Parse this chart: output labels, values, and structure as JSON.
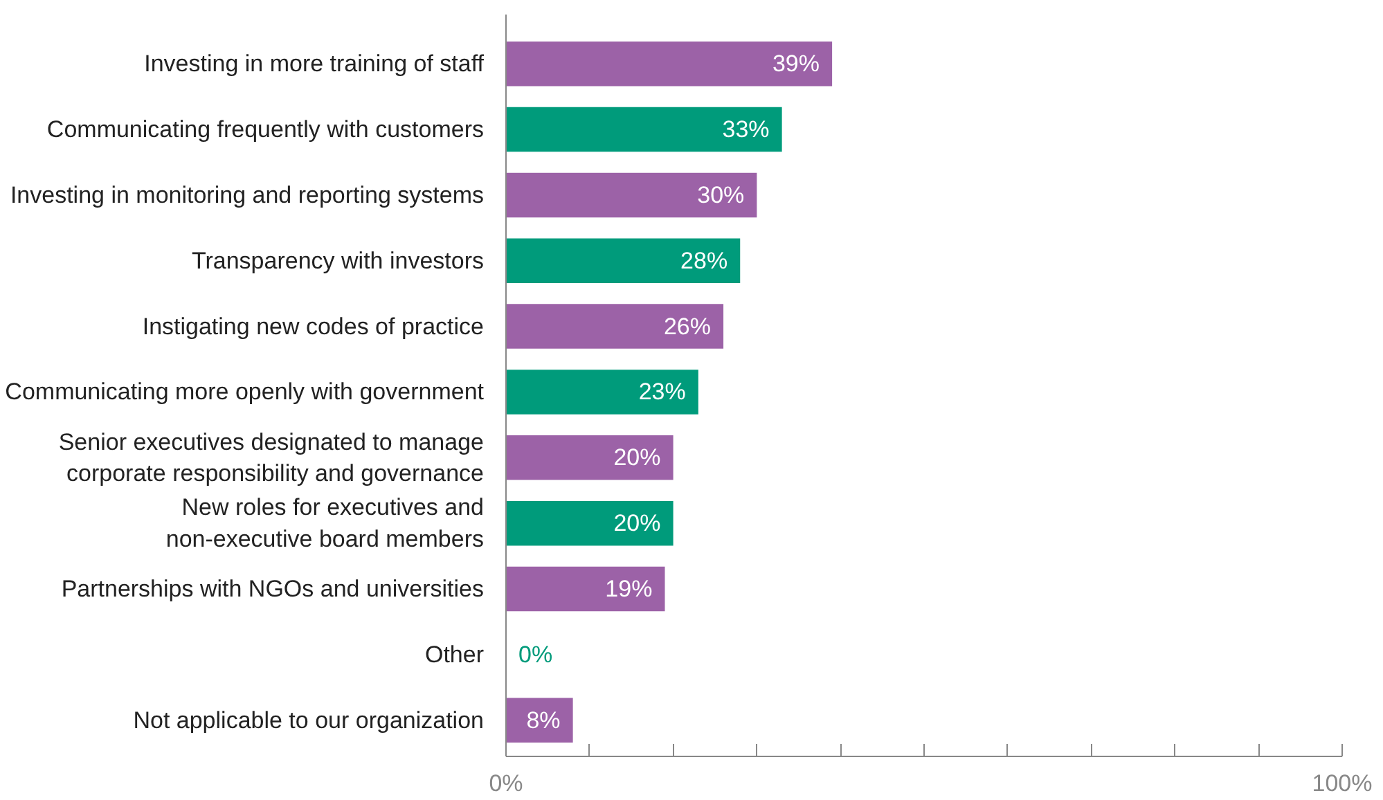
{
  "chart_data": {
    "type": "bar",
    "orientation": "horizontal",
    "categories": [
      "Investing in more training of staff",
      "Communicating frequently with customers",
      "Investing in monitoring and reporting systems",
      "Transparency with investors",
      "Instigating new codes of practice",
      "Communicating more openly with government",
      "Senior executives designated to manage\ncorporate responsibility and governance",
      "New roles for executives and\nnon-executive board members",
      "Partnerships with NGOs and universities",
      "Other",
      "Not applicable to our organization"
    ],
    "values": [
      39,
      33,
      30,
      28,
      26,
      23,
      20,
      20,
      19,
      0,
      8
    ],
    "value_labels": [
      "39%",
      "33%",
      "30%",
      "28%",
      "26%",
      "23%",
      "20%",
      "20%",
      "19%",
      "0%",
      "8%"
    ],
    "colors": [
      "#9c62a7",
      "#009b7b",
      "#9c62a7",
      "#009b7b",
      "#9c62a7",
      "#009b7b",
      "#9c62a7",
      "#009b7b",
      "#9c62a7",
      "#009b7b",
      "#9c62a7"
    ],
    "xlim": [
      0,
      100
    ],
    "xticks": [
      {
        "value": 0,
        "label": "0%"
      },
      {
        "value": 10,
        "label": null
      },
      {
        "value": 20,
        "label": null
      },
      {
        "value": 30,
        "label": null
      },
      {
        "value": 40,
        "label": null
      },
      {
        "value": 50,
        "label": null
      },
      {
        "value": 60,
        "label": null
      },
      {
        "value": 70,
        "label": null
      },
      {
        "value": 80,
        "label": null
      },
      {
        "value": 90,
        "label": null
      },
      {
        "value": 100,
        "label": "100%"
      }
    ],
    "grid": false
  }
}
